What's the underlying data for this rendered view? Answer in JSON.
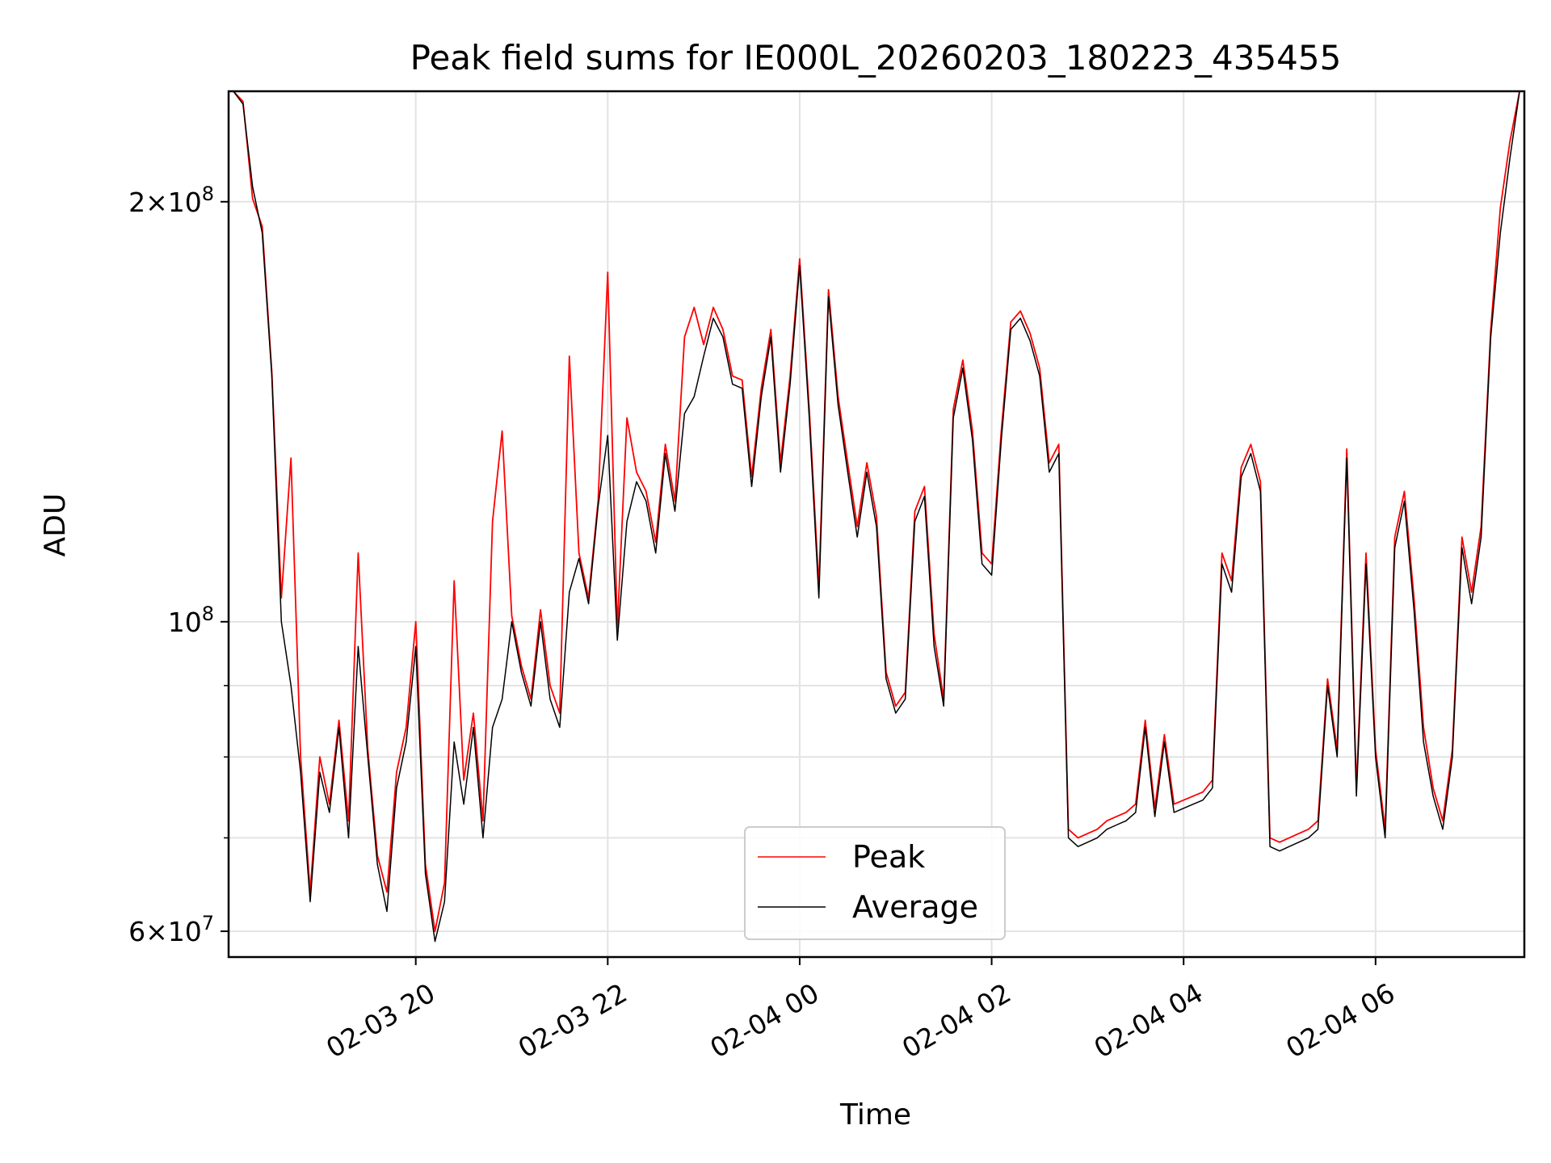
{
  "chart_data": {
    "type": "line",
    "title": "Peak field sums for IE000L_20260203_180223_435455",
    "xlabel": "Time",
    "ylabel": "ADU",
    "yscale": "log",
    "ylim": [
      57500000,
      240000000
    ],
    "xlim_hours": [
      18.05,
      31.55
    ],
    "x_ticks": [
      {
        "label": "02-03 20",
        "hour": 20
      },
      {
        "label": "02-03 22",
        "hour": 22
      },
      {
        "label": "02-04 00",
        "hour": 24
      },
      {
        "label": "02-04 02",
        "hour": 26
      },
      {
        "label": "02-04 04",
        "hour": 28
      },
      {
        "label": "02-04 06",
        "hour": 30
      }
    ],
    "y_ticks": [
      {
        "mantissa": "2",
        "exponent": "8",
        "value": 200000000
      },
      {
        "mantissa": "",
        "exponent": "8",
        "value": 100000000
      },
      {
        "mantissa": "6",
        "exponent": "7",
        "value": 60000000
      }
    ],
    "y_minor_ticks": [
      70000000,
      80000000,
      90000000
    ],
    "x_unit": "hours since 2026-02-03 00:00",
    "legend": {
      "position": "lower center",
      "entries": [
        "Peak",
        "Average"
      ]
    },
    "colors": {
      "peak": "#ff0000",
      "average": "#000000"
    },
    "series": [
      {
        "name": "Average",
        "x": [
          18.1,
          18.2,
          18.3,
          18.4,
          18.5,
          18.6,
          18.7,
          18.8,
          18.9,
          19.0,
          19.1,
          19.2,
          19.3,
          19.4,
          19.5,
          19.6,
          19.7,
          19.8,
          19.9,
          20.0,
          20.1,
          20.2,
          20.3,
          20.4,
          20.5,
          20.6,
          20.7,
          20.8,
          20.9,
          21.0,
          21.1,
          21.2,
          21.3,
          21.4,
          21.5,
          21.6,
          21.7,
          21.8,
          21.9,
          22.0,
          22.1,
          22.2,
          22.3,
          22.4,
          22.5,
          22.6,
          22.7,
          22.8,
          22.9,
          23.0,
          23.1,
          23.2,
          23.3,
          23.4,
          23.5,
          23.6,
          23.7,
          23.8,
          23.9,
          24.0,
          24.1,
          24.2,
          24.3,
          24.4,
          24.5,
          24.6,
          24.7,
          24.8,
          24.9,
          25.0,
          25.1,
          25.2,
          25.3,
          25.4,
          25.5,
          25.6,
          25.7,
          25.8,
          25.9,
          26.0,
          26.1,
          26.2,
          26.3,
          26.4,
          26.5,
          26.6,
          26.7,
          26.8,
          26.9,
          27.0,
          27.1,
          27.2,
          27.3,
          27.4,
          27.5,
          27.6,
          27.7,
          27.8,
          27.9,
          28.0,
          28.1,
          28.2,
          28.3,
          28.4,
          28.5,
          28.6,
          28.7,
          28.8,
          28.9,
          29.0,
          29.1,
          29.2,
          29.3,
          29.4,
          29.5,
          29.6,
          29.7,
          29.8,
          29.9,
          30.0,
          30.1,
          30.2,
          30.3,
          30.4,
          30.5,
          30.6,
          30.7,
          30.8,
          30.9,
          31.0,
          31.1,
          31.2,
          31.3,
          31.4,
          31.5
        ],
        "values": [
          240000000,
          235000000,
          205000000,
          190000000,
          150000000,
          100000000,
          90000000,
          78000000,
          63000000,
          78000000,
          73000000,
          84000000,
          70000000,
          96000000,
          80000000,
          67000000,
          62000000,
          76000000,
          82000000,
          96000000,
          66000000,
          59000000,
          63000000,
          82000000,
          74000000,
          84000000,
          70000000,
          84000000,
          88000000,
          100000000,
          92000000,
          87000000,
          100000000,
          88000000,
          84000000,
          105000000,
          111000000,
          103000000,
          121000000,
          136000000,
          97000000,
          118000000,
          126000000,
          122000000,
          112000000,
          132000000,
          120000000,
          141000000,
          145000000,
          155000000,
          165000000,
          160000000,
          148000000,
          147000000,
          125000000,
          145000000,
          160000000,
          128000000,
          148000000,
          180000000,
          140000000,
          104000000,
          171000000,
          143000000,
          128000000,
          115000000,
          128000000,
          117000000,
          91000000,
          86000000,
          88000000,
          118000000,
          123000000,
          96000000,
          87000000,
          140000000,
          152000000,
          135000000,
          110000000,
          108000000,
          135000000,
          162000000,
          165000000,
          159000000,
          150000000,
          128000000,
          132000000,
          70000000,
          69000000,
          69500000,
          70000000,
          71000000,
          71500000,
          72000000,
          73000000,
          84000000,
          72500000,
          82000000,
          73000000,
          73500000,
          74000000,
          74500000,
          76000000,
          110000000,
          105000000,
          127000000,
          132000000,
          124000000,
          69000000,
          68500000,
          69000000,
          69500000,
          70000000,
          71000000,
          90000000,
          80000000,
          131000000,
          75000000,
          110000000,
          80000000,
          70000000,
          113000000,
          122000000,
          102000000,
          82000000,
          75000000,
          71000000,
          80000000,
          113000000,
          103000000,
          115000000,
          160000000,
          190000000,
          215000000,
          240000000
        ]
      },
      {
        "name": "Peak",
        "x": [
          18.1,
          18.2,
          18.3,
          18.4,
          18.5,
          18.6,
          18.7,
          18.8,
          18.9,
          19.0,
          19.1,
          19.2,
          19.3,
          19.4,
          19.5,
          19.6,
          19.7,
          19.8,
          19.9,
          20.0,
          20.1,
          20.2,
          20.3,
          20.4,
          20.5,
          20.6,
          20.7,
          20.8,
          20.9,
          21.0,
          21.1,
          21.2,
          21.3,
          21.4,
          21.5,
          21.6,
          21.7,
          21.8,
          21.9,
          22.0,
          22.1,
          22.2,
          22.3,
          22.4,
          22.5,
          22.6,
          22.7,
          22.8,
          22.9,
          23.0,
          23.1,
          23.2,
          23.3,
          23.4,
          23.5,
          23.6,
          23.7,
          23.8,
          23.9,
          24.0,
          24.1,
          24.2,
          24.3,
          24.4,
          24.5,
          24.6,
          24.7,
          24.8,
          24.9,
          25.0,
          25.1,
          25.2,
          25.3,
          25.4,
          25.5,
          25.6,
          25.7,
          25.8,
          25.9,
          26.0,
          26.1,
          26.2,
          26.3,
          26.4,
          26.5,
          26.6,
          26.7,
          26.8,
          26.9,
          27.0,
          27.1,
          27.2,
          27.3,
          27.4,
          27.5,
          27.6,
          27.7,
          27.8,
          27.9,
          28.0,
          28.1,
          28.2,
          28.3,
          28.4,
          28.5,
          28.6,
          28.7,
          28.8,
          28.9,
          29.0,
          29.1,
          29.2,
          29.3,
          29.4,
          29.5,
          29.6,
          29.7,
          29.8,
          29.9,
          30.0,
          30.1,
          30.2,
          30.3,
          30.4,
          30.5,
          30.6,
          30.7,
          30.8,
          30.9,
          31.0,
          31.1,
          31.2,
          31.3,
          31.4,
          31.5
        ],
        "values": [
          240000000,
          236000000,
          201000000,
          192000000,
          151000000,
          104000000,
          131000000,
          80000000,
          64000000,
          80000000,
          74000000,
          85000000,
          72000000,
          112000000,
          81000000,
          68000000,
          64000000,
          78000000,
          84000000,
          100000000,
          67000000,
          60000000,
          65000000,
          107000000,
          77000000,
          86000000,
          72000000,
          118000000,
          137000000,
          101000000,
          93000000,
          88000000,
          102000000,
          90000000,
          86000000,
          155000000,
          112000000,
          104000000,
          122000000,
          178000000,
          99000000,
          140000000,
          128000000,
          124000000,
          114000000,
          134000000,
          122000000,
          160000000,
          168000000,
          158000000,
          168000000,
          162000000,
          150000000,
          149000000,
          127000000,
          147000000,
          162000000,
          130000000,
          150000000,
          182000000,
          142000000,
          106000000,
          173000000,
          145000000,
          130000000,
          117000000,
          130000000,
          119000000,
          92000000,
          87000000,
          89000000,
          120000000,
          125000000,
          98000000,
          88000000,
          142000000,
          154000000,
          137000000,
          112000000,
          110000000,
          137000000,
          164000000,
          167000000,
          161000000,
          152000000,
          130000000,
          134000000,
          71000000,
          70000000,
          70500000,
          71000000,
          72000000,
          72500000,
          73000000,
          74000000,
          85000000,
          73500000,
          83000000,
          74000000,
          74500000,
          75000000,
          75500000,
          77000000,
          112000000,
          107000000,
          129000000,
          134000000,
          126000000,
          70000000,
          69500000,
          70000000,
          70500000,
          71000000,
          72000000,
          91000000,
          81000000,
          133000000,
          76000000,
          112000000,
          81000000,
          71000000,
          115000000,
          124000000,
          104000000,
          84000000,
          76000000,
          72000000,
          81000000,
          115000000,
          105000000,
          117000000,
          162000000,
          198000000,
          221000000,
          240000000
        ]
      }
    ]
  }
}
